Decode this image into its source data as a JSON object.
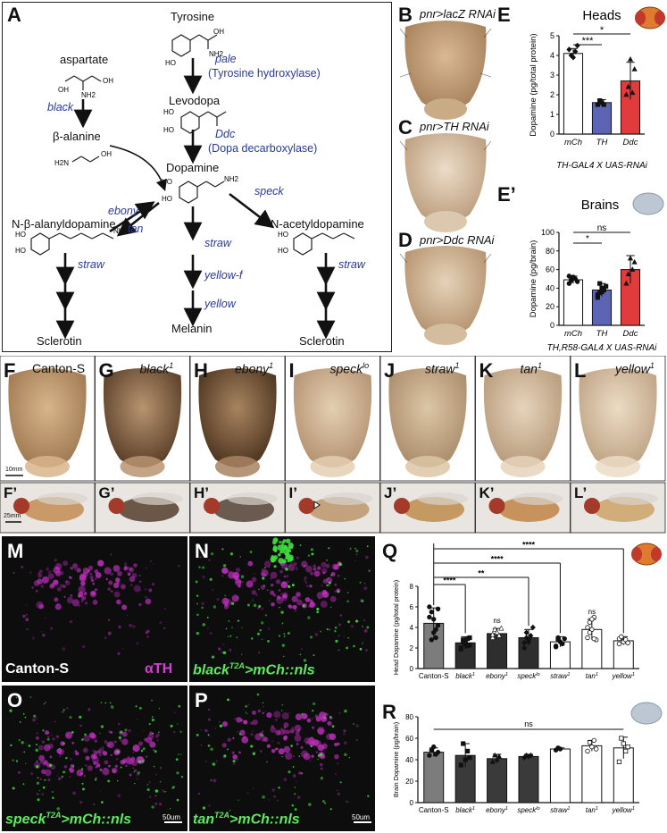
{
  "panels": {
    "A": "A",
    "B": "B",
    "C": "C",
    "D": "D",
    "E": "E",
    "E2": "E’",
    "F": "F",
    "G": "G",
    "H": "H",
    "I": "I",
    "J": "J",
    "K": "K",
    "L": "L",
    "F2": "F’",
    "G2": "G’",
    "H2": "H’",
    "I2": "I’",
    "J2": "J’",
    "K2": "K’",
    "L2": "L’",
    "M": "M",
    "N": "N",
    "O": "O",
    "P": "P",
    "Q": "Q",
    "R": "R"
  },
  "pathway": {
    "tyrosine": "Tyrosine",
    "pale": "pale",
    "pale_enzyme": "(Tyrosine hydroxylase)",
    "levodopa": "Levodopa",
    "ddc": "Ddc",
    "ddc_enzyme": "(Dopa decarboxylase)",
    "dopamine": "Dopamine",
    "aspartate": "aspartate",
    "black": "black",
    "beta_alanine": "β-alanine",
    "ebony": "ebony",
    "tan": "tan",
    "speck": "speck",
    "nbad": "N-β-alanyldopamine",
    "nada": "N-acetyldopamine",
    "straw1": "straw",
    "straw2": "straw",
    "straw3": "straw",
    "yellow_f": "yellow-f",
    "yellow": "yellow",
    "sclerotin1": "Sclerotin",
    "melanin": "Melanin",
    "sclerotin2": "Sclerotin"
  },
  "rnai": {
    "b_title": "pnr>lacZ RNAi",
    "c_title": "pnr>TH RNAi",
    "d_title": "pnr>Ddc RNAi"
  },
  "mutants": {
    "f": "Canton-S",
    "g": "black",
    "h": "ebony",
    "i": "speck",
    "j": "straw",
    "k": "tan",
    "l": "yellow",
    "g_sup": "1",
    "h_sup": "1",
    "i_sup": "lo",
    "j_sup": "1",
    "k_sup": "1",
    "l_sup": "1",
    "scale_thorax": "10mm",
    "scale_fly": "25mm"
  },
  "micro": {
    "m_label": "Canton-S",
    "m_stain": "αTH",
    "n_label": "black",
    "n_sup": "T2A",
    "n_rest": ">mCh::nls",
    "o_label": "speck",
    "o_sup": "T2A",
    "o_rest": ">mCh::nls",
    "p_label": "tan",
    "p_sup": "T2A",
    "p_rest": ">mCh::nls",
    "scale": "50um"
  },
  "colors": {
    "mch": "#ffffff",
    "th": "#5b65b3",
    "ddc": "#e23b3b",
    "dark_bar": "#3a3a3a",
    "gray_bar": "#7a7a7a",
    "magenta": "#c02fc0",
    "green": "#3ddb3d"
  },
  "chart_data": [
    {
      "id": "E",
      "type": "bar",
      "title": "Heads",
      "ylabel": "Dopamine (pg/total protein)",
      "xlabel": "TH-GAL4 X UAS-RNAi",
      "categories": [
        "mCh",
        "TH",
        "Ddc"
      ],
      "values": [
        4.1,
        1.6,
        2.7
      ],
      "errors": [
        0.25,
        0.15,
        0.95
      ],
      "ylim": [
        0,
        5
      ],
      "yticks": [
        0,
        1,
        2,
        3,
        4,
        5
      ],
      "points": [
        [
          4.3,
          4.0,
          3.9,
          4.2,
          4.5
        ],
        [
          1.5,
          1.7,
          1.6,
          1.5
        ],
        [
          2.0,
          2.4,
          3.8,
          2.1,
          3.3
        ]
      ],
      "significance": [
        {
          "from": 0,
          "to": 1,
          "label": "***"
        },
        {
          "from": 0,
          "to": 2,
          "label": "*"
        }
      ]
    },
    {
      "id": "E2",
      "type": "bar",
      "title": "Brains",
      "ylabel": "Dopamine (pg/brain)",
      "xlabel": "TH,R58-GAL4 X UAS-RNAi",
      "categories": [
        "mCh",
        "TH",
        "Ddc"
      ],
      "values": [
        49,
        38,
        60
      ],
      "errors": [
        4,
        7,
        15
      ],
      "ylim": [
        0,
        100
      ],
      "yticks": [
        0,
        20,
        40,
        60,
        80,
        100
      ],
      "points": [
        [
          45,
          48,
          52,
          50,
          47,
          53,
          49,
          51
        ],
        [
          30,
          35,
          40,
          38,
          42,
          33,
          45,
          36
        ],
        [
          45,
          55,
          72,
          60,
          68
        ]
      ],
      "significance": [
        {
          "from": 0,
          "to": 1,
          "label": "*"
        },
        {
          "from": 0,
          "to": 2,
          "label": "ns"
        }
      ]
    },
    {
      "id": "Q",
      "type": "bar",
      "ylabel": "Head Dopamine (pg/total protein)",
      "categories": [
        "Canton-S",
        "black",
        "ebony",
        "speck",
        "straw",
        "tan",
        "yellow"
      ],
      "category_sups": [
        "",
        "1",
        "1",
        "lo",
        "1",
        "1",
        "1"
      ],
      "values": [
        4.4,
        2.5,
        3.4,
        3.0,
        2.6,
        3.8,
        2.7
      ],
      "errors": [
        1.5,
        0.6,
        0.5,
        0.8,
        0.5,
        1.0,
        0.4
      ],
      "ylim": [
        0,
        8
      ],
      "yticks": [
        0,
        2,
        4,
        6,
        8
      ],
      "points": [
        [
          6.0,
          5.5,
          3.5,
          3.0,
          4.2,
          5.0,
          2.8,
          4.8,
          3.8,
          5.8
        ],
        [
          2.0,
          2.8,
          2.5,
          2.2,
          3.0,
          1.9,
          2.6,
          2.4,
          2.9,
          2.3
        ],
        [
          3.0,
          3.8,
          3.5,
          3.2,
          3.9,
          3.3
        ],
        [
          2.0,
          3.5,
          2.8,
          3.2,
          4.0,
          2.5,
          3.0,
          2.6
        ],
        [
          2.2,
          3.0,
          2.6,
          2.4,
          2.9,
          2.1,
          2.8
        ],
        [
          3.0,
          4.5,
          3.8,
          5.0,
          2.8,
          4.0,
          3.5,
          4.8,
          2.9
        ],
        [
          2.4,
          3.0,
          2.6,
          2.8,
          2.5,
          2.9,
          3.1
        ]
      ],
      "significance": [
        {
          "from": 0,
          "to": 1,
          "label": "****"
        },
        {
          "from": 0,
          "to": 2,
          "label": "ns"
        },
        {
          "from": 0,
          "to": 3,
          "label": "**"
        },
        {
          "from": 0,
          "to": 4,
          "label": "****"
        },
        {
          "from": 0,
          "to": 5,
          "label": "ns"
        },
        {
          "from": 0,
          "to": 6,
          "label": "****"
        }
      ]
    },
    {
      "id": "R",
      "type": "bar",
      "ylabel": "Brain Dopamine (pg/brain)",
      "categories": [
        "Canton-S",
        "black",
        "ebony",
        "speck",
        "straw",
        "tan",
        "yellow"
      ],
      "category_sups": [
        "",
        "1",
        "1",
        "lo",
        "1",
        "1",
        "1"
      ],
      "values": [
        47,
        44,
        41,
        43,
        50,
        53,
        51
      ],
      "errors": [
        4,
        11,
        4,
        2,
        1,
        5,
        10
      ],
      "ylim": [
        0,
        80
      ],
      "yticks": [
        0,
        20,
        40,
        60,
        80
      ],
      "points": [
        [
          44,
          49,
          52,
          45,
          47
        ],
        [
          35,
          55,
          40,
          48,
          42
        ],
        [
          38,
          44,
          40,
          43
        ],
        [
          42,
          44,
          43,
          44
        ],
        [
          49,
          51,
          50
        ],
        [
          48,
          56,
          52,
          58,
          50
        ],
        [
          38,
          60,
          55,
          48,
          52
        ]
      ],
      "significance_label": "ns"
    }
  ]
}
